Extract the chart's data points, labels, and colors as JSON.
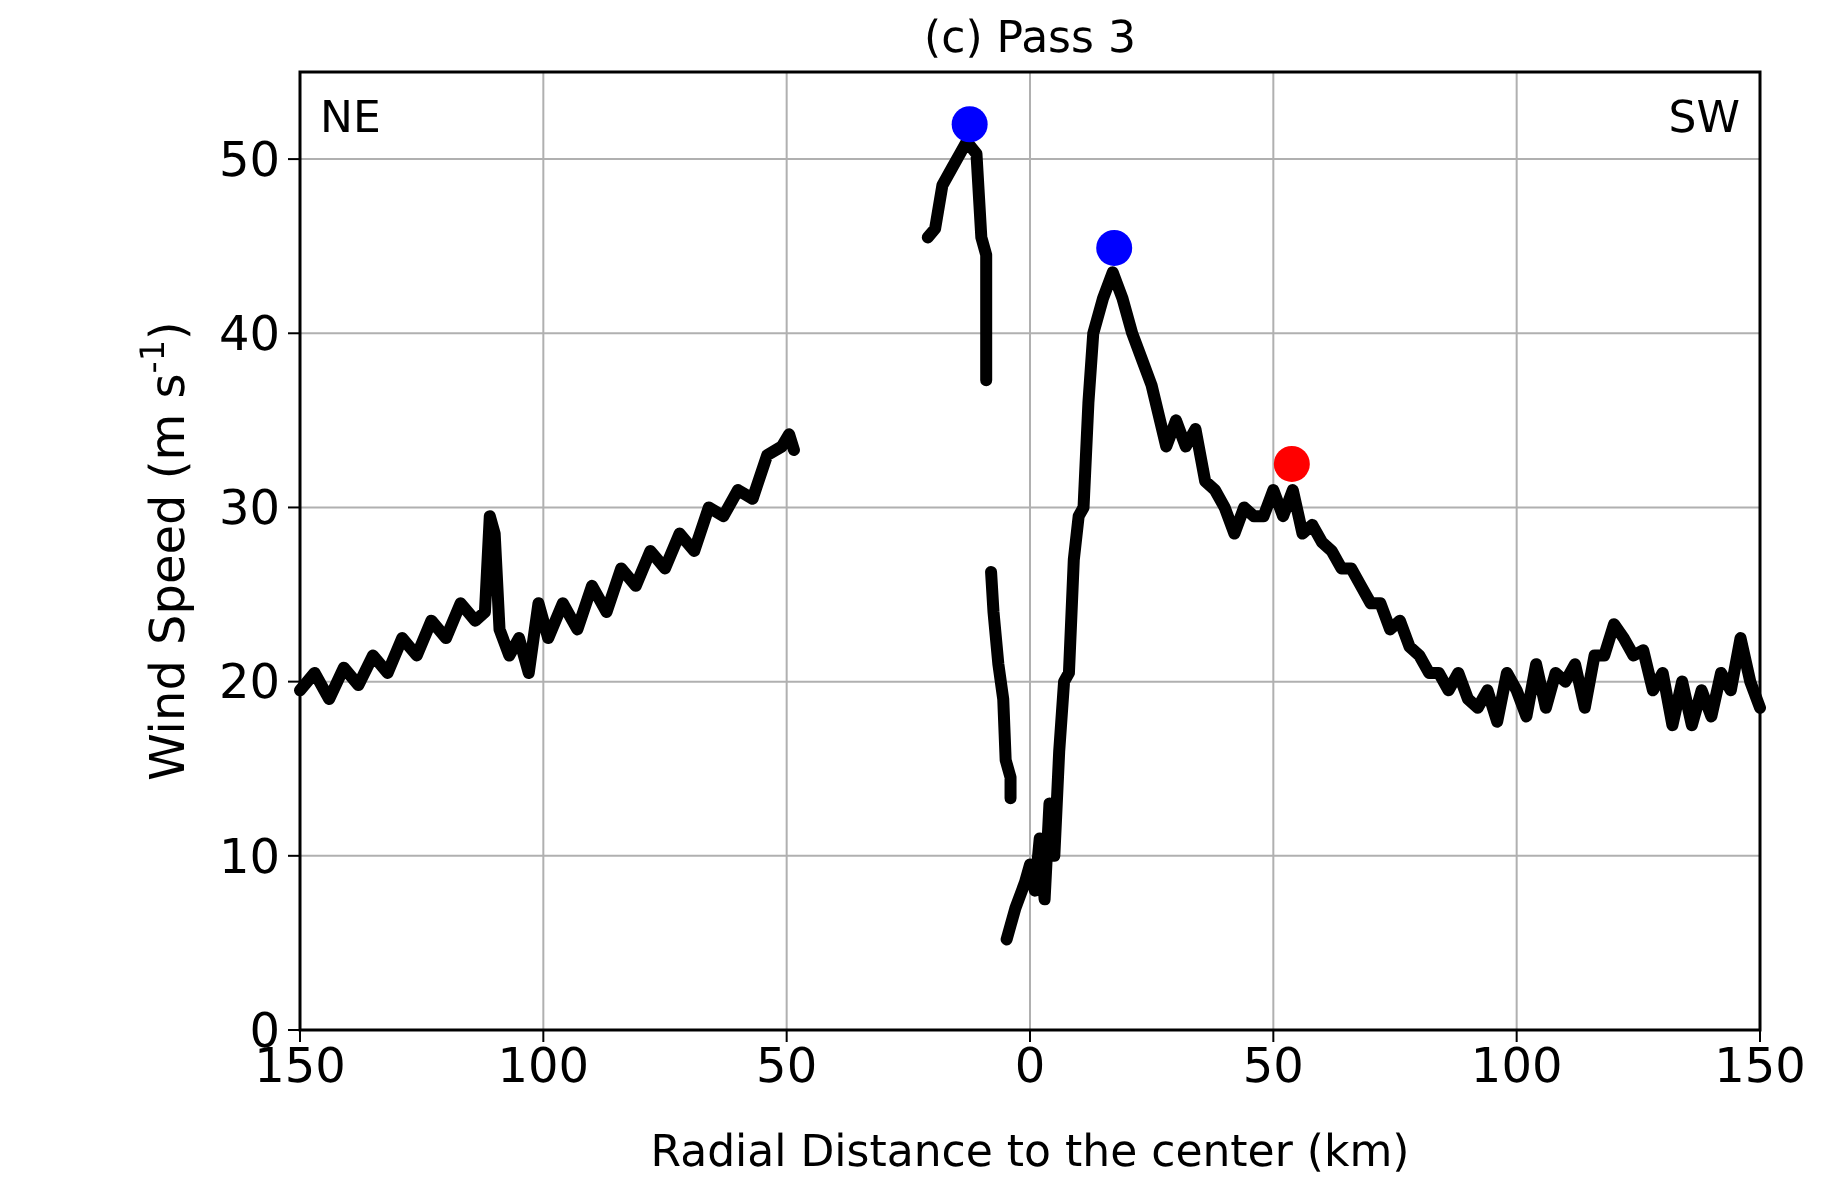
{
  "chart_data": {
    "type": "line",
    "title": "(c) Pass 3",
    "xlabel": "Radial Distance to the center (km)",
    "ylabel": "Wind Speed (m s$^{-1}$)",
    "annotations": [
      "NE",
      "SW"
    ],
    "xlim": [
      -150,
      150
    ],
    "xticks": [
      {
        "value": -150,
        "label": "150"
      },
      {
        "value": -100,
        "label": "100"
      },
      {
        "value": -50,
        "label": "50"
      },
      0,
      50,
      100,
      150
    ],
    "ylim": [
      0,
      55
    ],
    "yticks": [
      0,
      10,
      20,
      30,
      40,
      50
    ],
    "grid": true,
    "line_style": "solid",
    "series": [
      {
        "color": "#000000",
        "marker": "none",
        "x": [
          -150,
          -147,
          -144,
          -141,
          -138,
          -135,
          -132,
          -129,
          -126,
          -123,
          -120,
          -117,
          -114,
          -112,
          -111,
          -110,
          -109,
          -107,
          -105,
          -103,
          -101,
          -99,
          -96,
          -93,
          -90,
          -87,
          -84,
          -81,
          -78,
          -75,
          -72,
          -69,
          -66,
          -63,
          -60,
          -57,
          -54,
          -51,
          -49.5,
          -48.5,
          -35,
          -21,
          -19.5,
          -18,
          -16,
          -14,
          -13,
          -11,
          -10,
          -9,
          -9,
          -8.5,
          -8,
          -7.5,
          -6.5,
          -5.5,
          -5,
          -4,
          -4,
          -4.4,
          -4.8,
          -3,
          -1,
          0,
          1,
          2,
          3,
          4,
          5,
          6,
          7,
          8,
          9,
          10,
          11,
          12,
          13,
          15,
          17,
          19,
          21,
          23,
          25,
          28,
          30,
          32,
          34,
          36,
          38,
          40,
          42,
          44,
          46,
          48,
          50,
          52,
          54,
          56,
          58,
          60,
          62,
          64,
          66,
          68,
          70,
          72,
          74,
          76,
          78,
          80,
          82,
          84,
          86,
          88,
          90,
          92,
          94,
          96,
          98,
          100,
          102,
          104,
          106,
          108,
          110,
          112,
          114,
          116,
          118,
          120,
          122,
          124,
          126,
          128,
          130,
          132,
          134,
          136,
          138,
          140,
          142,
          144,
          146,
          148,
          150
        ],
        "values": [
          19.5,
          20.5,
          19,
          20.8,
          19.8,
          21.5,
          20.5,
          22.5,
          21.5,
          23.5,
          22.5,
          24.5,
          23.5,
          24,
          29.5,
          28.5,
          23,
          21.5,
          22.5,
          20.5,
          24.5,
          22.5,
          24.5,
          23,
          25.5,
          24,
          26.5,
          25.5,
          27.5,
          26.5,
          28.5,
          27.5,
          30,
          29.5,
          31,
          30.5,
          33,
          33.5,
          34.2,
          33.3,
          null,
          45.5,
          46,
          48.5,
          49.5,
          50.5,
          51,
          50.3,
          45.5,
          44.5,
          37.3,
          null,
          26.3,
          24,
          21,
          19,
          15.5,
          14.5,
          13.3,
          null,
          5.2,
          7,
          8.5,
          9.5,
          8,
          11,
          7.5,
          13,
          10,
          16,
          20,
          20.5,
          27,
          29.5,
          30,
          36,
          40,
          42,
          43.5,
          42,
          40,
          38.5,
          37,
          33.5,
          35,
          33.5,
          34.5,
          31.5,
          31,
          30,
          28.5,
          30,
          29.5,
          29.5,
          31,
          29.5,
          31,
          28.5,
          29,
          28,
          27.5,
          26.5,
          26.5,
          25.5,
          24.5,
          24.5,
          23,
          23.5,
          22,
          21.5,
          20.5,
          20.5,
          19.5,
          20.5,
          19,
          18.5,
          19.5,
          17.7,
          20.5,
          19.5,
          18,
          21,
          18.5,
          20.5,
          20,
          21,
          18.5,
          21.5,
          21.5,
          23.3,
          22.5,
          21.5,
          21.8,
          19.5,
          20.5,
          17.5,
          20,
          17.5,
          19.5,
          18,
          20.5,
          19.5,
          22.5,
          20,
          18.5
        ]
      },
      {
        "type": "scatter",
        "color": "#0000ff",
        "marker": "circle",
        "x": [
          -12.4,
          17.3
        ],
        "values": [
          52.0,
          44.9
        ]
      },
      {
        "type": "scatter",
        "color": "#ff0000",
        "marker": "circle",
        "x": [
          53.8
        ],
        "values": [
          32.5
        ]
      }
    ]
  }
}
